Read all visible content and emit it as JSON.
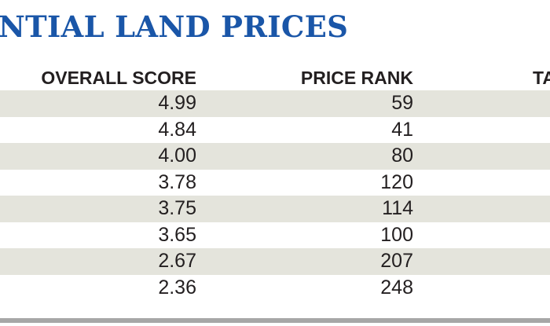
{
  "title": "NTIAL LAND PRICES",
  "columns": {
    "overall_score": "OVERALL SCORE",
    "price_rank": "PRICE RANK",
    "third_cut": "TA"
  },
  "rows": [
    {
      "overall_score": "4.99",
      "price_rank": "59"
    },
    {
      "overall_score": "4.84",
      "price_rank": "41"
    },
    {
      "overall_score": "4.00",
      "price_rank": "80"
    },
    {
      "overall_score": "3.78",
      "price_rank": "120"
    },
    {
      "overall_score": "3.75",
      "price_rank": "114"
    },
    {
      "overall_score": "3.65",
      "price_rank": "100"
    },
    {
      "overall_score": "2.67",
      "price_rank": "207"
    },
    {
      "overall_score": "2.36",
      "price_rank": "248"
    }
  ],
  "colors": {
    "title": "#1a56a8",
    "row_shade": "#e4e4dc",
    "text": "#231f20",
    "bottom_rule": "#a7a7a7"
  }
}
